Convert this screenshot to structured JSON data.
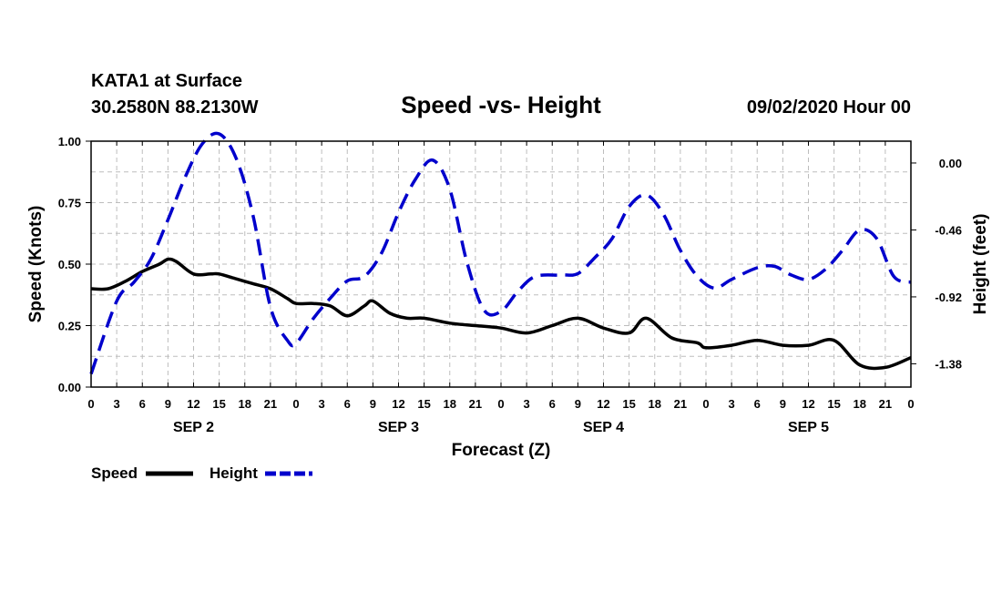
{
  "header": {
    "station": "KATA1 at Surface",
    "coords": "30.2580N 88.2130W",
    "title": "Speed -vs- Height",
    "datetime": "09/02/2020 Hour 00"
  },
  "chart_data": {
    "type": "line",
    "title": "Speed -vs- Height",
    "xlabel": "Forecast (Z)",
    "ylabel_left": "Speed (Knots)",
    "ylabel_right": "Height (feet)",
    "x_range_hours": [
      0,
      96
    ],
    "x_tick_labels": [
      "0",
      "3",
      "6",
      "9",
      "12",
      "15",
      "18",
      "21",
      "0",
      "3",
      "6",
      "9",
      "12",
      "15",
      "18",
      "21",
      "0",
      "3",
      "6",
      "9",
      "12",
      "15",
      "18",
      "21",
      "0",
      "3",
      "6",
      "9",
      "12",
      "15",
      "18",
      "21",
      "0"
    ],
    "day_labels": [
      {
        "label": "SEP 2",
        "hour": 12
      },
      {
        "label": "SEP 3",
        "hour": 36
      },
      {
        "label": "SEP 4",
        "hour": 60
      },
      {
        "label": "SEP 5",
        "hour": 84
      }
    ],
    "y_left": {
      "min": 0,
      "max": 1,
      "ticks": [
        "0.00",
        "0.25",
        "0.50",
        "0.75",
        "1.00"
      ],
      "tick_values": [
        0,
        0.25,
        0.5,
        0.75,
        1.0
      ]
    },
    "y_right": {
      "min": -1.54,
      "max": 0.15,
      "ticks": [
        "0.00",
        "-0.46",
        "-0.92",
        "-1.38"
      ],
      "tick_values": [
        0,
        -0.46,
        -0.92,
        -1.38
      ]
    },
    "grid": true,
    "series": [
      {
        "name": "Speed",
        "axis": "left",
        "color": "#000000",
        "style": "solid",
        "points": [
          [
            0,
            0.4
          ],
          [
            2,
            0.4
          ],
          [
            4,
            0.43
          ],
          [
            6,
            0.47
          ],
          [
            8,
            0.5
          ],
          [
            9,
            0.52
          ],
          [
            10,
            0.51
          ],
          [
            12,
            0.46
          ],
          [
            14,
            0.46
          ],
          [
            15,
            0.46
          ],
          [
            17,
            0.44
          ],
          [
            19,
            0.42
          ],
          [
            21,
            0.4
          ],
          [
            23,
            0.36
          ],
          [
            24,
            0.34
          ],
          [
            26,
            0.34
          ],
          [
            28,
            0.33
          ],
          [
            30,
            0.29
          ],
          [
            32,
            0.33
          ],
          [
            33,
            0.35
          ],
          [
            35,
            0.3
          ],
          [
            37,
            0.28
          ],
          [
            39,
            0.28
          ],
          [
            42,
            0.26
          ],
          [
            45,
            0.25
          ],
          [
            48,
            0.24
          ],
          [
            51,
            0.22
          ],
          [
            54,
            0.25
          ],
          [
            57,
            0.28
          ],
          [
            60,
            0.24
          ],
          [
            63,
            0.22
          ],
          [
            65,
            0.28
          ],
          [
            68,
            0.2
          ],
          [
            71,
            0.18
          ],
          [
            72,
            0.16
          ],
          [
            75,
            0.17
          ],
          [
            78,
            0.19
          ],
          [
            81,
            0.17
          ],
          [
            84,
            0.17
          ],
          [
            87,
            0.19
          ],
          [
            90,
            0.09
          ],
          [
            93,
            0.08
          ],
          [
            96,
            0.12
          ]
        ]
      },
      {
        "name": "Height",
        "axis": "right",
        "color": "#0000cc",
        "style": "dashed",
        "points": [
          [
            0,
            -1.45
          ],
          [
            3,
            -0.95
          ],
          [
            5,
            -0.82
          ],
          [
            7,
            -0.66
          ],
          [
            9,
            -0.39
          ],
          [
            11,
            -0.1
          ],
          [
            13,
            0.13
          ],
          [
            15,
            0.2
          ],
          [
            17,
            0.03
          ],
          [
            19,
            -0.37
          ],
          [
            21,
            -0.99
          ],
          [
            23,
            -1.22
          ],
          [
            24,
            -1.24
          ],
          [
            26,
            -1.07
          ],
          [
            28,
            -0.93
          ],
          [
            30,
            -0.81
          ],
          [
            32,
            -0.78
          ],
          [
            34,
            -0.62
          ],
          [
            36,
            -0.34
          ],
          [
            38,
            -0.11
          ],
          [
            40,
            0.02
          ],
          [
            42,
            -0.18
          ],
          [
            44,
            -0.68
          ],
          [
            46,
            -1.01
          ],
          [
            48,
            -1.02
          ],
          [
            50,
            -0.88
          ],
          [
            52,
            -0.78
          ],
          [
            55,
            -0.77
          ],
          [
            57,
            -0.76
          ],
          [
            59,
            -0.65
          ],
          [
            61,
            -0.52
          ],
          [
            63,
            -0.3
          ],
          [
            65,
            -0.22
          ],
          [
            67,
            -0.35
          ],
          [
            69,
            -0.6
          ],
          [
            71,
            -0.78
          ],
          [
            73,
            -0.86
          ],
          [
            75,
            -0.8
          ],
          [
            78,
            -0.72
          ],
          [
            80,
            -0.71
          ],
          [
            82,
            -0.77
          ],
          [
            84,
            -0.8
          ],
          [
            86,
            -0.73
          ],
          [
            88,
            -0.6
          ],
          [
            90,
            -0.46
          ],
          [
            92,
            -0.52
          ],
          [
            94,
            -0.78
          ],
          [
            96,
            -0.82
          ]
        ]
      }
    ],
    "legend": {
      "position": "bottom-left",
      "entries": [
        {
          "label": "Speed",
          "color": "#000000",
          "style": "solid"
        },
        {
          "label": "Height",
          "color": "#0000cc",
          "style": "dashed"
        }
      ]
    }
  }
}
